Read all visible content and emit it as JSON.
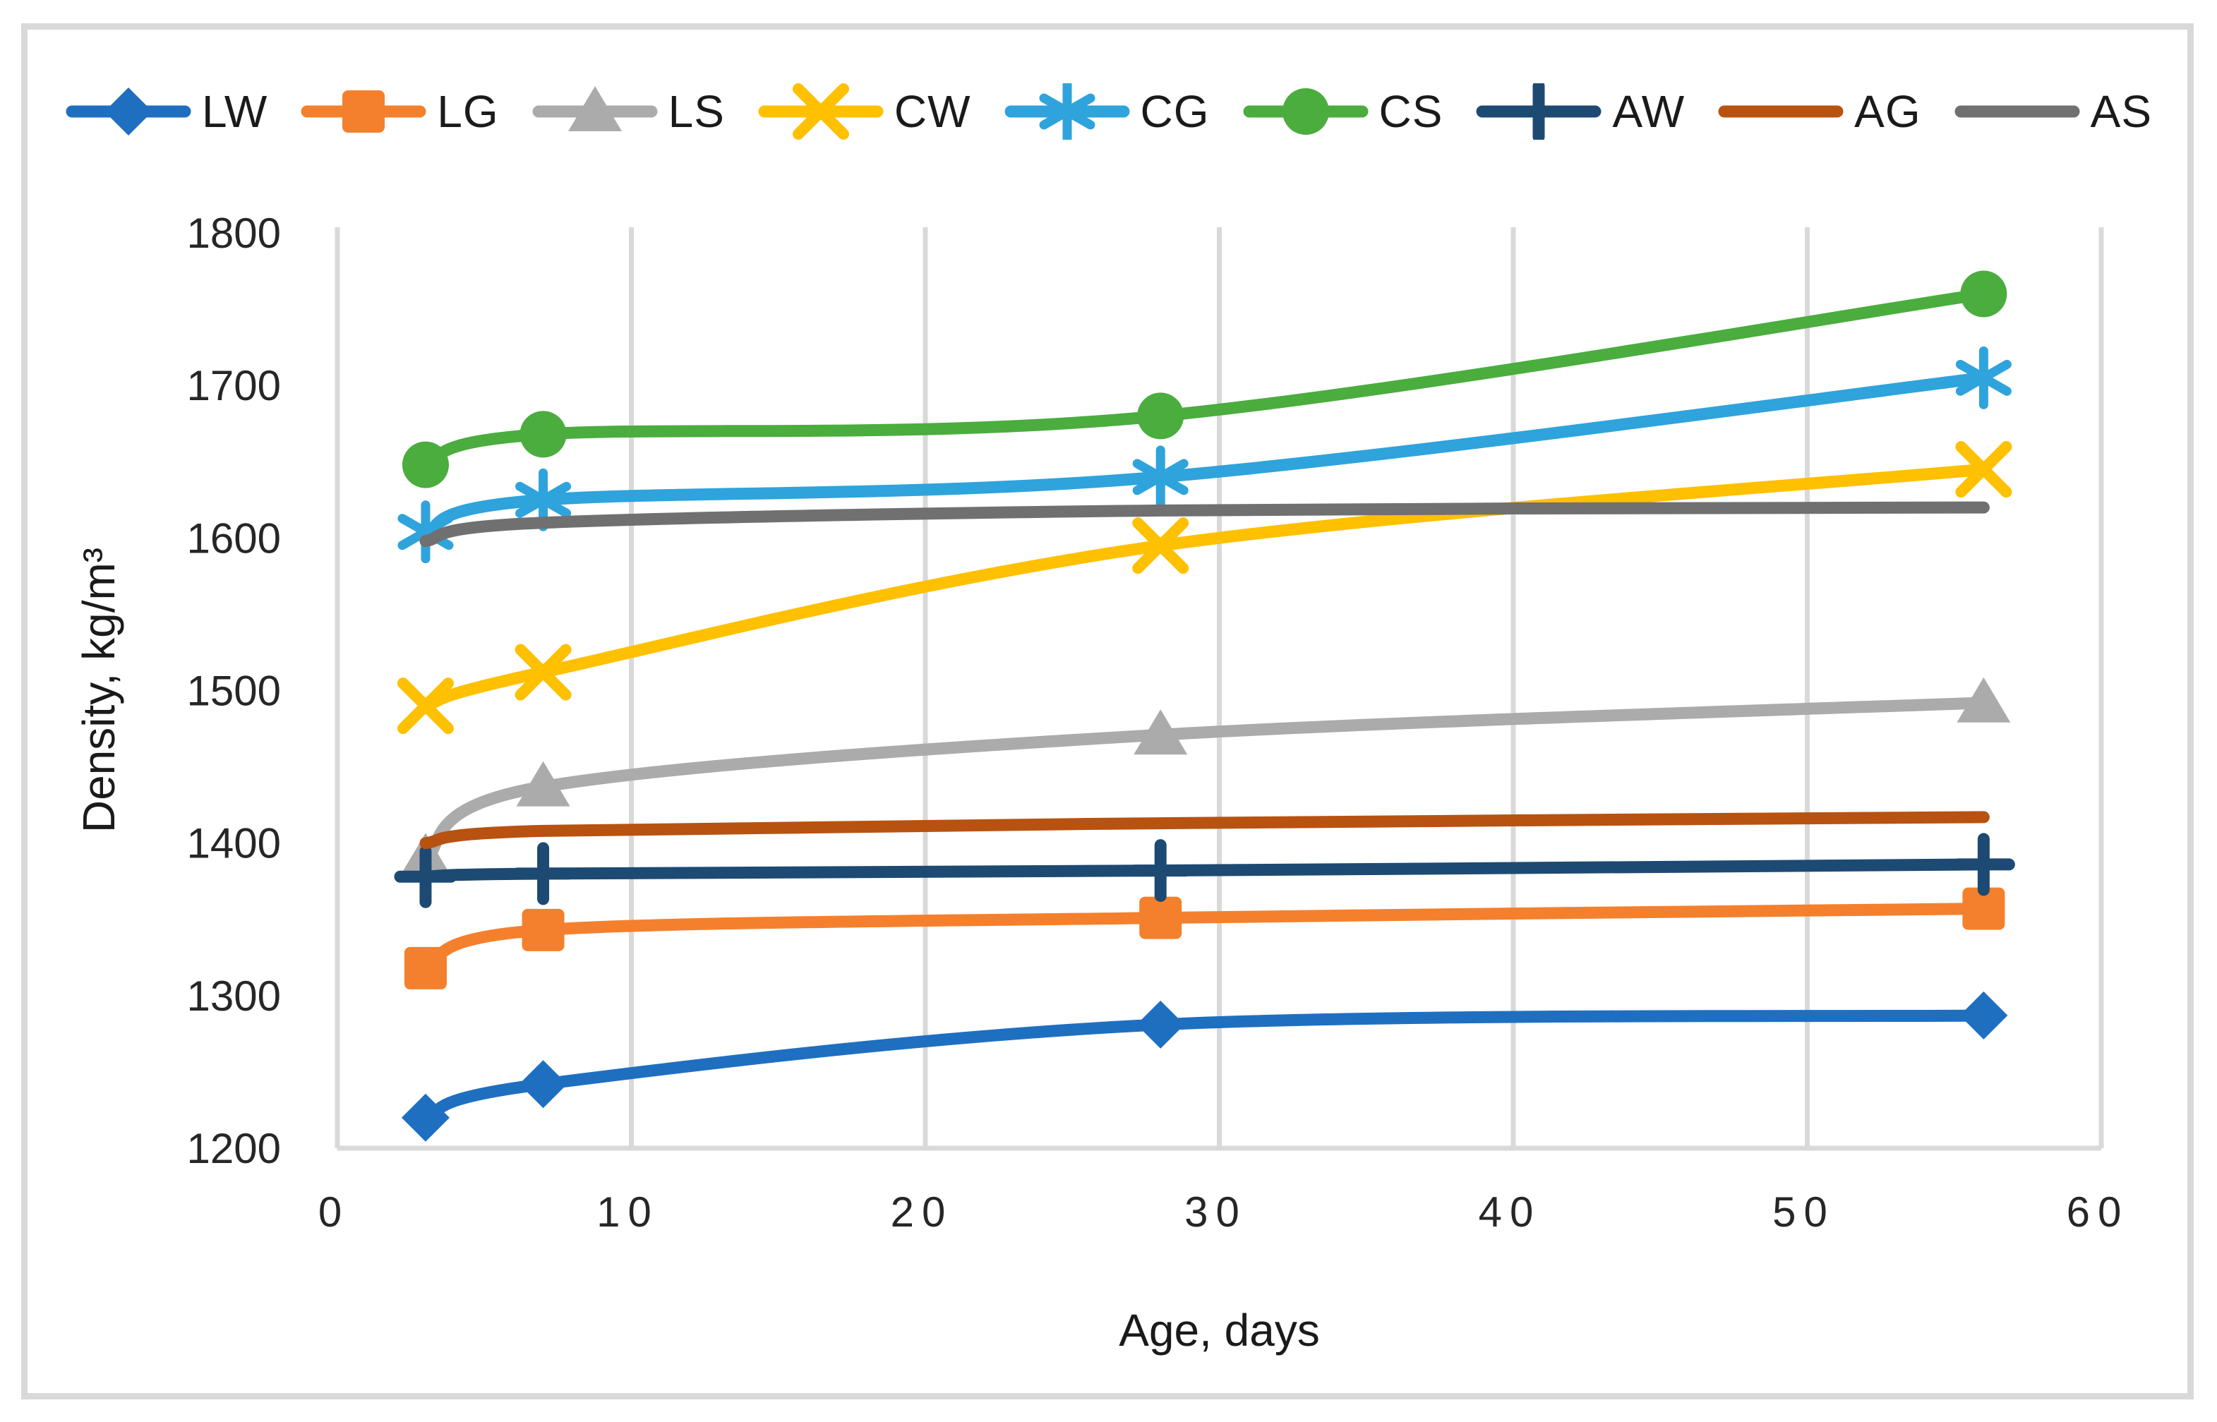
{
  "chart_data": {
    "type": "line",
    "title": "",
    "xlabel": "Age, days",
    "ylabel": "Density, kg/m³",
    "x": [
      3,
      7,
      28,
      56
    ],
    "xlim": [
      0,
      60
    ],
    "ylim": [
      1200,
      1800
    ],
    "x_ticks": [
      0,
      10,
      20,
      30,
      40,
      50,
      60
    ],
    "y_ticks": [
      1200,
      1300,
      1400,
      1500,
      1600,
      1700,
      1800
    ],
    "grid": "vertical-only",
    "gridline_color": "#D9D9D9",
    "legend_position": "top",
    "smooth_lines": true,
    "series": [
      {
        "name": "LW",
        "color": "#1F6FC1",
        "marker": "diamond",
        "values": [
          1220,
          1242,
          1281,
          1287
        ]
      },
      {
        "name": "LG",
        "color": "#F4802D",
        "marker": "square",
        "values": [
          1318,
          1343,
          1351,
          1357
        ]
      },
      {
        "name": "LS",
        "color": "#ABABAB",
        "marker": "triangle",
        "values": [
          1390,
          1437,
          1471,
          1492
        ]
      },
      {
        "name": "CW",
        "color": "#FFC000",
        "marker": "x",
        "values": [
          1490,
          1512,
          1595,
          1645
        ]
      },
      {
        "name": "CG",
        "color": "#2FA3DC",
        "marker": "asterisk",
        "values": [
          1604,
          1625,
          1640,
          1705
        ]
      },
      {
        "name": "CS",
        "color": "#4AAD3E",
        "marker": "circle",
        "values": [
          1648,
          1668,
          1680,
          1760
        ]
      },
      {
        "name": "AW",
        "color": "#1D4A73",
        "marker": "plus",
        "values": [
          1378,
          1380,
          1382,
          1386
        ]
      },
      {
        "name": "AG",
        "color": "#B85211",
        "marker": "none",
        "values": [
          1400,
          1408,
          1413,
          1417
        ]
      },
      {
        "name": "AS",
        "color": "#707070",
        "marker": "none",
        "values": [
          1598,
          1610,
          1618,
          1620
        ]
      }
    ]
  },
  "axes": {
    "tick_color": "#262626",
    "axis_line_color": "#D9D9D9"
  }
}
